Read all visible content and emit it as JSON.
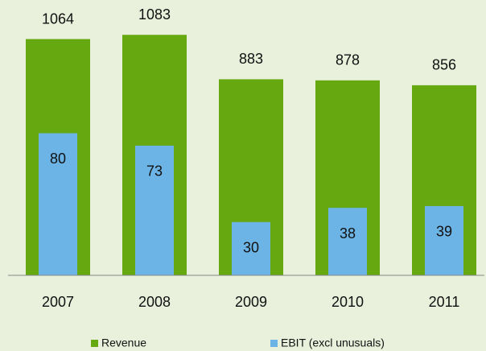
{
  "chart_data": {
    "type": "bar",
    "categories": [
      "2007",
      "2008",
      "2009",
      "2010",
      "2011"
    ],
    "series": [
      {
        "name": "Revenue",
        "color": "#66a80f",
        "values": [
          1064,
          1083,
          883,
          878,
          856
        ]
      },
      {
        "name": "EBIT (excl unusuals)",
        "color": "#6cb4e6",
        "values": [
          80,
          73,
          30,
          38,
          39
        ],
        "axis": "y2"
      }
    ],
    "ylim": [
      0,
      1200
    ],
    "y2lim": [
      0,
      150
    ]
  }
}
